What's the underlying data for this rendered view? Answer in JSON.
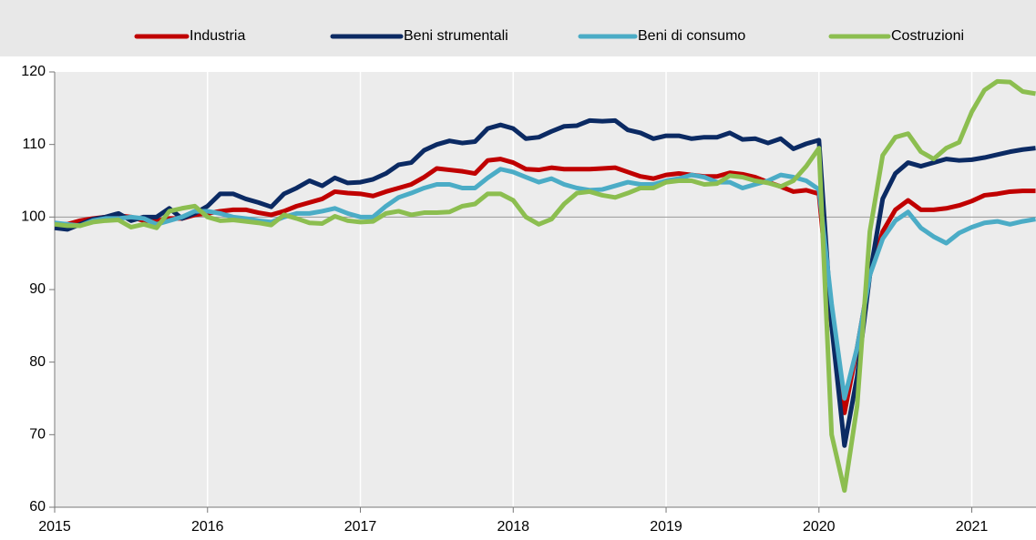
{
  "chart_data": {
    "type": "line",
    "x": [
      2015.0,
      2015.083,
      2015.167,
      2015.25,
      2015.333,
      2015.417,
      2015.5,
      2015.583,
      2015.667,
      2015.75,
      2015.833,
      2015.917,
      2016.0,
      2016.083,
      2016.167,
      2016.25,
      2016.333,
      2016.417,
      2016.5,
      2016.583,
      2016.667,
      2016.75,
      2016.833,
      2016.917,
      2017.0,
      2017.083,
      2017.167,
      2017.25,
      2017.333,
      2017.417,
      2017.5,
      2017.583,
      2017.667,
      2017.75,
      2017.833,
      2017.917,
      2018.0,
      2018.083,
      2018.167,
      2018.25,
      2018.333,
      2018.417,
      2018.5,
      2018.583,
      2018.667,
      2018.75,
      2018.833,
      2018.917,
      2019.0,
      2019.083,
      2019.167,
      2019.25,
      2019.333,
      2019.417,
      2019.5,
      2019.583,
      2019.667,
      2019.75,
      2019.833,
      2019.917,
      2020.0,
      2020.083,
      2020.167,
      2020.25,
      2020.333,
      2020.417,
      2020.5,
      2020.583,
      2020.667,
      2020.75,
      2020.833,
      2020.917,
      2021.0,
      2021.083,
      2021.167,
      2021.25,
      2021.333,
      2021.417
    ],
    "series": [
      {
        "name": "Industria",
        "color": "#c00000",
        "values": [
          99,
          99,
          99.5,
          99.8,
          100,
          100.2,
          100,
          99.5,
          99.5,
          99.8,
          99.8,
          100.3,
          100.5,
          100.8,
          101,
          101,
          100.6,
          100.3,
          100.8,
          101.5,
          102,
          102.5,
          103.5,
          103.3,
          103.2,
          102.9,
          103.5,
          104,
          104.5,
          105.5,
          106.7,
          106.5,
          106.3,
          106,
          107.8,
          108,
          107.5,
          106.6,
          106.5,
          106.8,
          106.6,
          106.6,
          106.6,
          106.7,
          106.8,
          106.2,
          105.6,
          105.3,
          105.8,
          106,
          105.8,
          105.6,
          105.6,
          106.1,
          105.9,
          105.5,
          104.8,
          104.2,
          103.5,
          103.7,
          103.2,
          85,
          73,
          82,
          92,
          98,
          101,
          102.3,
          101,
          101,
          101.2,
          101.6,
          102.2,
          103,
          103.2,
          103.5,
          103.6,
          103.6
        ]
      },
      {
        "name": "Beni strumentali",
        "color": "#0b2a63",
        "values": [
          98.5,
          98.3,
          99,
          99.7,
          100,
          100.5,
          99.5,
          100,
          100,
          101.2,
          99.8,
          100.5,
          101.5,
          103.2,
          103.2,
          102.5,
          102,
          101.4,
          103.2,
          104,
          105,
          104.3,
          105.4,
          104.7,
          104.8,
          105.2,
          106,
          107.2,
          107.5,
          109.2,
          110,
          110.5,
          110.2,
          110.4,
          112.2,
          112.7,
          112.2,
          110.8,
          111,
          111.8,
          112.5,
          112.6,
          113.3,
          113.2,
          113.3,
          112,
          111.6,
          110.8,
          111.2,
          111.2,
          110.8,
          111,
          111,
          111.6,
          110.7,
          110.8,
          110.2,
          110.8,
          109.4,
          110.1,
          110.6,
          85,
          68.5,
          78,
          92,
          102.5,
          106,
          107.5,
          107,
          107.5,
          108,
          107.8,
          107.9,
          108.2,
          108.6,
          109,
          109.3,
          109.5
        ]
      },
      {
        "name": "Beni di consumo",
        "color": "#4bacc6",
        "values": [
          99.2,
          99,
          98.8,
          99.5,
          99.8,
          99.8,
          100,
          99.8,
          99,
          99.5,
          100,
          100.8,
          100.8,
          100.5,
          100,
          99.8,
          99.5,
          99.3,
          100,
          100.5,
          100.5,
          100.8,
          101.2,
          100.5,
          100,
          100,
          101.5,
          102.7,
          103.3,
          104,
          104.5,
          104.5,
          104,
          104,
          105.4,
          106.6,
          106.2,
          105.5,
          104.8,
          105.3,
          104.5,
          104,
          103.7,
          103.8,
          104.3,
          104.8,
          104.5,
          104.5,
          105,
          105.3,
          105.8,
          105.5,
          104.8,
          104.8,
          104,
          104.5,
          105,
          105.8,
          105.5,
          105,
          103.8,
          88,
          75,
          82,
          92,
          97,
          99.5,
          100.7,
          98.5,
          97.3,
          96.4,
          97.8,
          98.6,
          99.2,
          99.4,
          99,
          99.4,
          99.7
        ]
      },
      {
        "name": "Costruzioni",
        "color": "#8cbe50",
        "values": [
          99,
          98.8,
          98.8,
          99.3,
          99.5,
          99.6,
          98.6,
          99,
          98.5,
          100.8,
          101.2,
          101.5,
          100,
          99.5,
          99.6,
          99.4,
          99.2,
          98.9,
          100.3,
          99.8,
          99.2,
          99.1,
          100.1,
          99.5,
          99.3,
          99.4,
          100.5,
          100.8,
          100.3,
          100.6,
          100.6,
          100.7,
          101.5,
          101.8,
          103.2,
          103.2,
          102.3,
          100,
          99,
          99.7,
          101.8,
          103.3,
          103.5,
          103,
          102.7,
          103.3,
          104,
          104,
          104.8,
          105,
          105,
          104.5,
          104.6,
          105.7,
          105.5,
          105,
          104.7,
          104.2,
          105,
          107,
          109.5,
          70,
          62.3,
          74,
          98,
          108.5,
          111,
          111.5,
          109,
          108,
          109.5,
          110.3,
          114.5,
          117.5,
          118.7,
          118.6,
          117.3,
          117
        ]
      }
    ],
    "xlim": [
      2015,
      2021.42
    ],
    "xticks": [
      2015,
      2016,
      2017,
      2018,
      2019,
      2020,
      2021
    ],
    "ylim": [
      60,
      120
    ],
    "yticks": [
      60,
      70,
      80,
      90,
      100,
      110,
      120
    ],
    "reference_line": 100,
    "legend": "top"
  }
}
